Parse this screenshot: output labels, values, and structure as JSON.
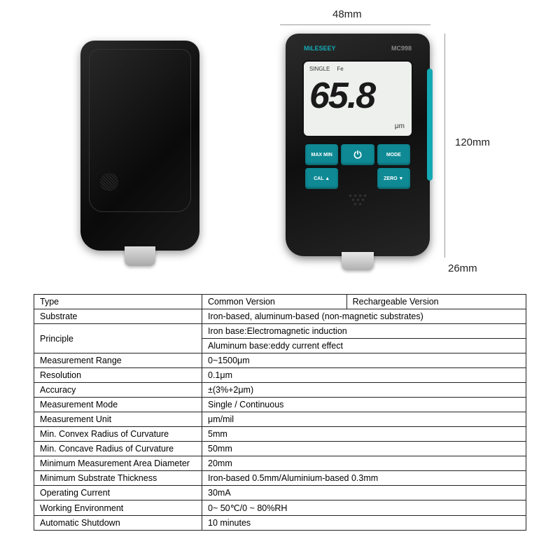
{
  "dimensions": {
    "width": "48mm",
    "height": "120mm",
    "depth": "26mm"
  },
  "device": {
    "brand": "MiLESEEY",
    "model": "MC998",
    "screen_mode": "SINGLE",
    "screen_material": "Fe",
    "screen_reading": "65.8",
    "screen_unit": "μm",
    "accent_color": "#14aab5",
    "body_color": "#1a1a1a",
    "screen_bg": "#eef0ee",
    "buttons": {
      "maxmin": "MAX MIN",
      "power": "⏻",
      "mode": "MODE",
      "cal": "CAL ▲",
      "blank": "",
      "zero": "ZERO ▼"
    }
  },
  "spec_table": {
    "colors": {
      "border": "#222222",
      "text": "#000000",
      "bg": "#ffffff"
    },
    "header": {
      "label": "Type",
      "col1": "Common Version",
      "col2": "Rechargeable Version"
    },
    "rows": [
      {
        "label": "Substrate",
        "value": "Iron-based, aluminum-based (non-magnetic substrates)"
      },
      {
        "label": "Principle",
        "rowspan": 2,
        "value": "Iron base:Electromagnetic induction"
      },
      {
        "label": "",
        "value": "Aluminum base:eddy current effect",
        "skipLabel": true
      },
      {
        "label": "Measurement Range",
        "value": "0~1500μm"
      },
      {
        "label": "Resolution",
        "value": "0.1μm"
      },
      {
        "label": "Accuracy",
        "value": "±(3%+2μm)"
      },
      {
        "label": "Measurement Mode",
        "value": "Single / Continuous"
      },
      {
        "label": "Measurement Unit",
        "value": "μm/mil"
      },
      {
        "label": "Min. Convex Radius of Curvature",
        "value": "5mm"
      },
      {
        "label": "Min. Concave Radius of Curvature",
        "value": "50mm"
      },
      {
        "label": "Minimum Measurement Area Diameter",
        "value": "20mm"
      },
      {
        "label": "Minimum Substrate Thickness",
        "value": "Iron-based 0.5mm/Aluminium-based 0.3mm"
      },
      {
        "label": "Operating Current",
        "value": "30mA"
      },
      {
        "label": "Working Environment",
        "value": "0~ 50℃/0 ~ 80%RH"
      },
      {
        "label": "Automatic Shutdown",
        "value": "10 minutes"
      }
    ]
  }
}
